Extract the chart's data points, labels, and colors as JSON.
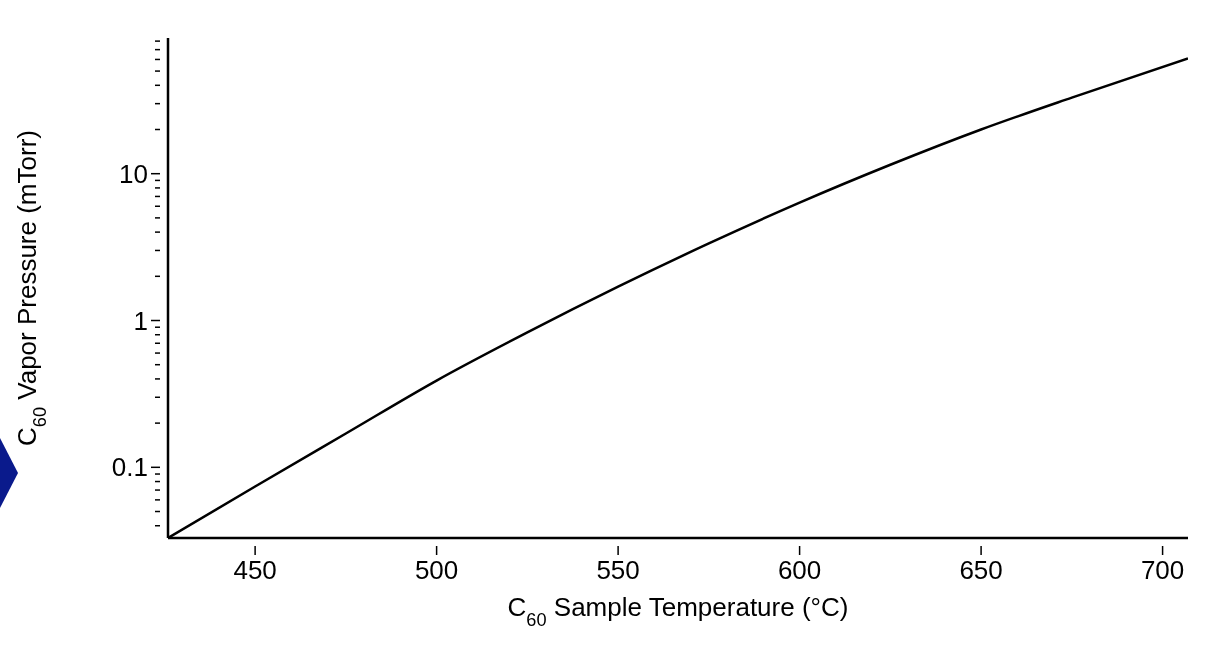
{
  "chart_data": {
    "type": "line",
    "xlabel": "C$_{60}$ Sample Temperature (°C)",
    "ylabel": "C$_{60}$ Vapor Pressure (mTorr)",
    "log": "y",
    "grid": false,
    "marker": "none",
    "line_style": "solid",
    "x": [
      426,
      450,
      475,
      500,
      525,
      550,
      575,
      600,
      625,
      650,
      675,
      707
    ],
    "series": [
      {
        "color": "#000000",
        "values": [
          0.033,
          0.074,
          0.17,
          0.39,
          0.83,
          1.7,
          3.35,
          6.35,
          11.5,
          20,
          33,
          61
        ]
      }
    ],
    "xlim": [
      426,
      707
    ],
    "xticks": [
      450,
      500,
      550,
      600,
      650,
      700
    ],
    "ylim": [
      0.033,
      84
    ],
    "yticks": [
      {
        "value": 0.04,
        "label": null
      },
      {
        "value": 0.05,
        "label": null
      },
      {
        "value": 0.06,
        "label": null
      },
      {
        "value": 0.07,
        "label": null
      },
      {
        "value": 0.08,
        "label": null
      },
      {
        "value": 0.09,
        "label": null
      },
      0.1,
      {
        "value": 0.2,
        "label": null
      },
      {
        "value": 0.3,
        "label": null
      },
      {
        "value": 0.4,
        "label": null
      },
      {
        "value": 0.5,
        "label": null
      },
      {
        "value": 0.6,
        "label": null
      },
      {
        "value": 0.7,
        "label": null
      },
      {
        "value": 0.8,
        "label": null
      },
      {
        "value": 0.9,
        "label": null
      },
      1,
      {
        "value": 2,
        "label": null
      },
      {
        "value": 3,
        "label": null
      },
      {
        "value": 4,
        "label": null
      },
      {
        "value": 5,
        "label": null
      },
      {
        "value": 6,
        "label": null
      },
      {
        "value": 7,
        "label": null
      },
      {
        "value": 8,
        "label": null
      },
      {
        "value": 9,
        "label": null
      },
      10,
      {
        "value": 20,
        "label": null
      },
      {
        "value": 30,
        "label": null
      },
      {
        "value": 40,
        "label": null
      },
      {
        "value": 50,
        "label": null
      },
      {
        "value": 60,
        "label": null
      },
      {
        "value": 70,
        "label": null
      },
      {
        "value": 80,
        "label": null
      }
    ]
  }
}
